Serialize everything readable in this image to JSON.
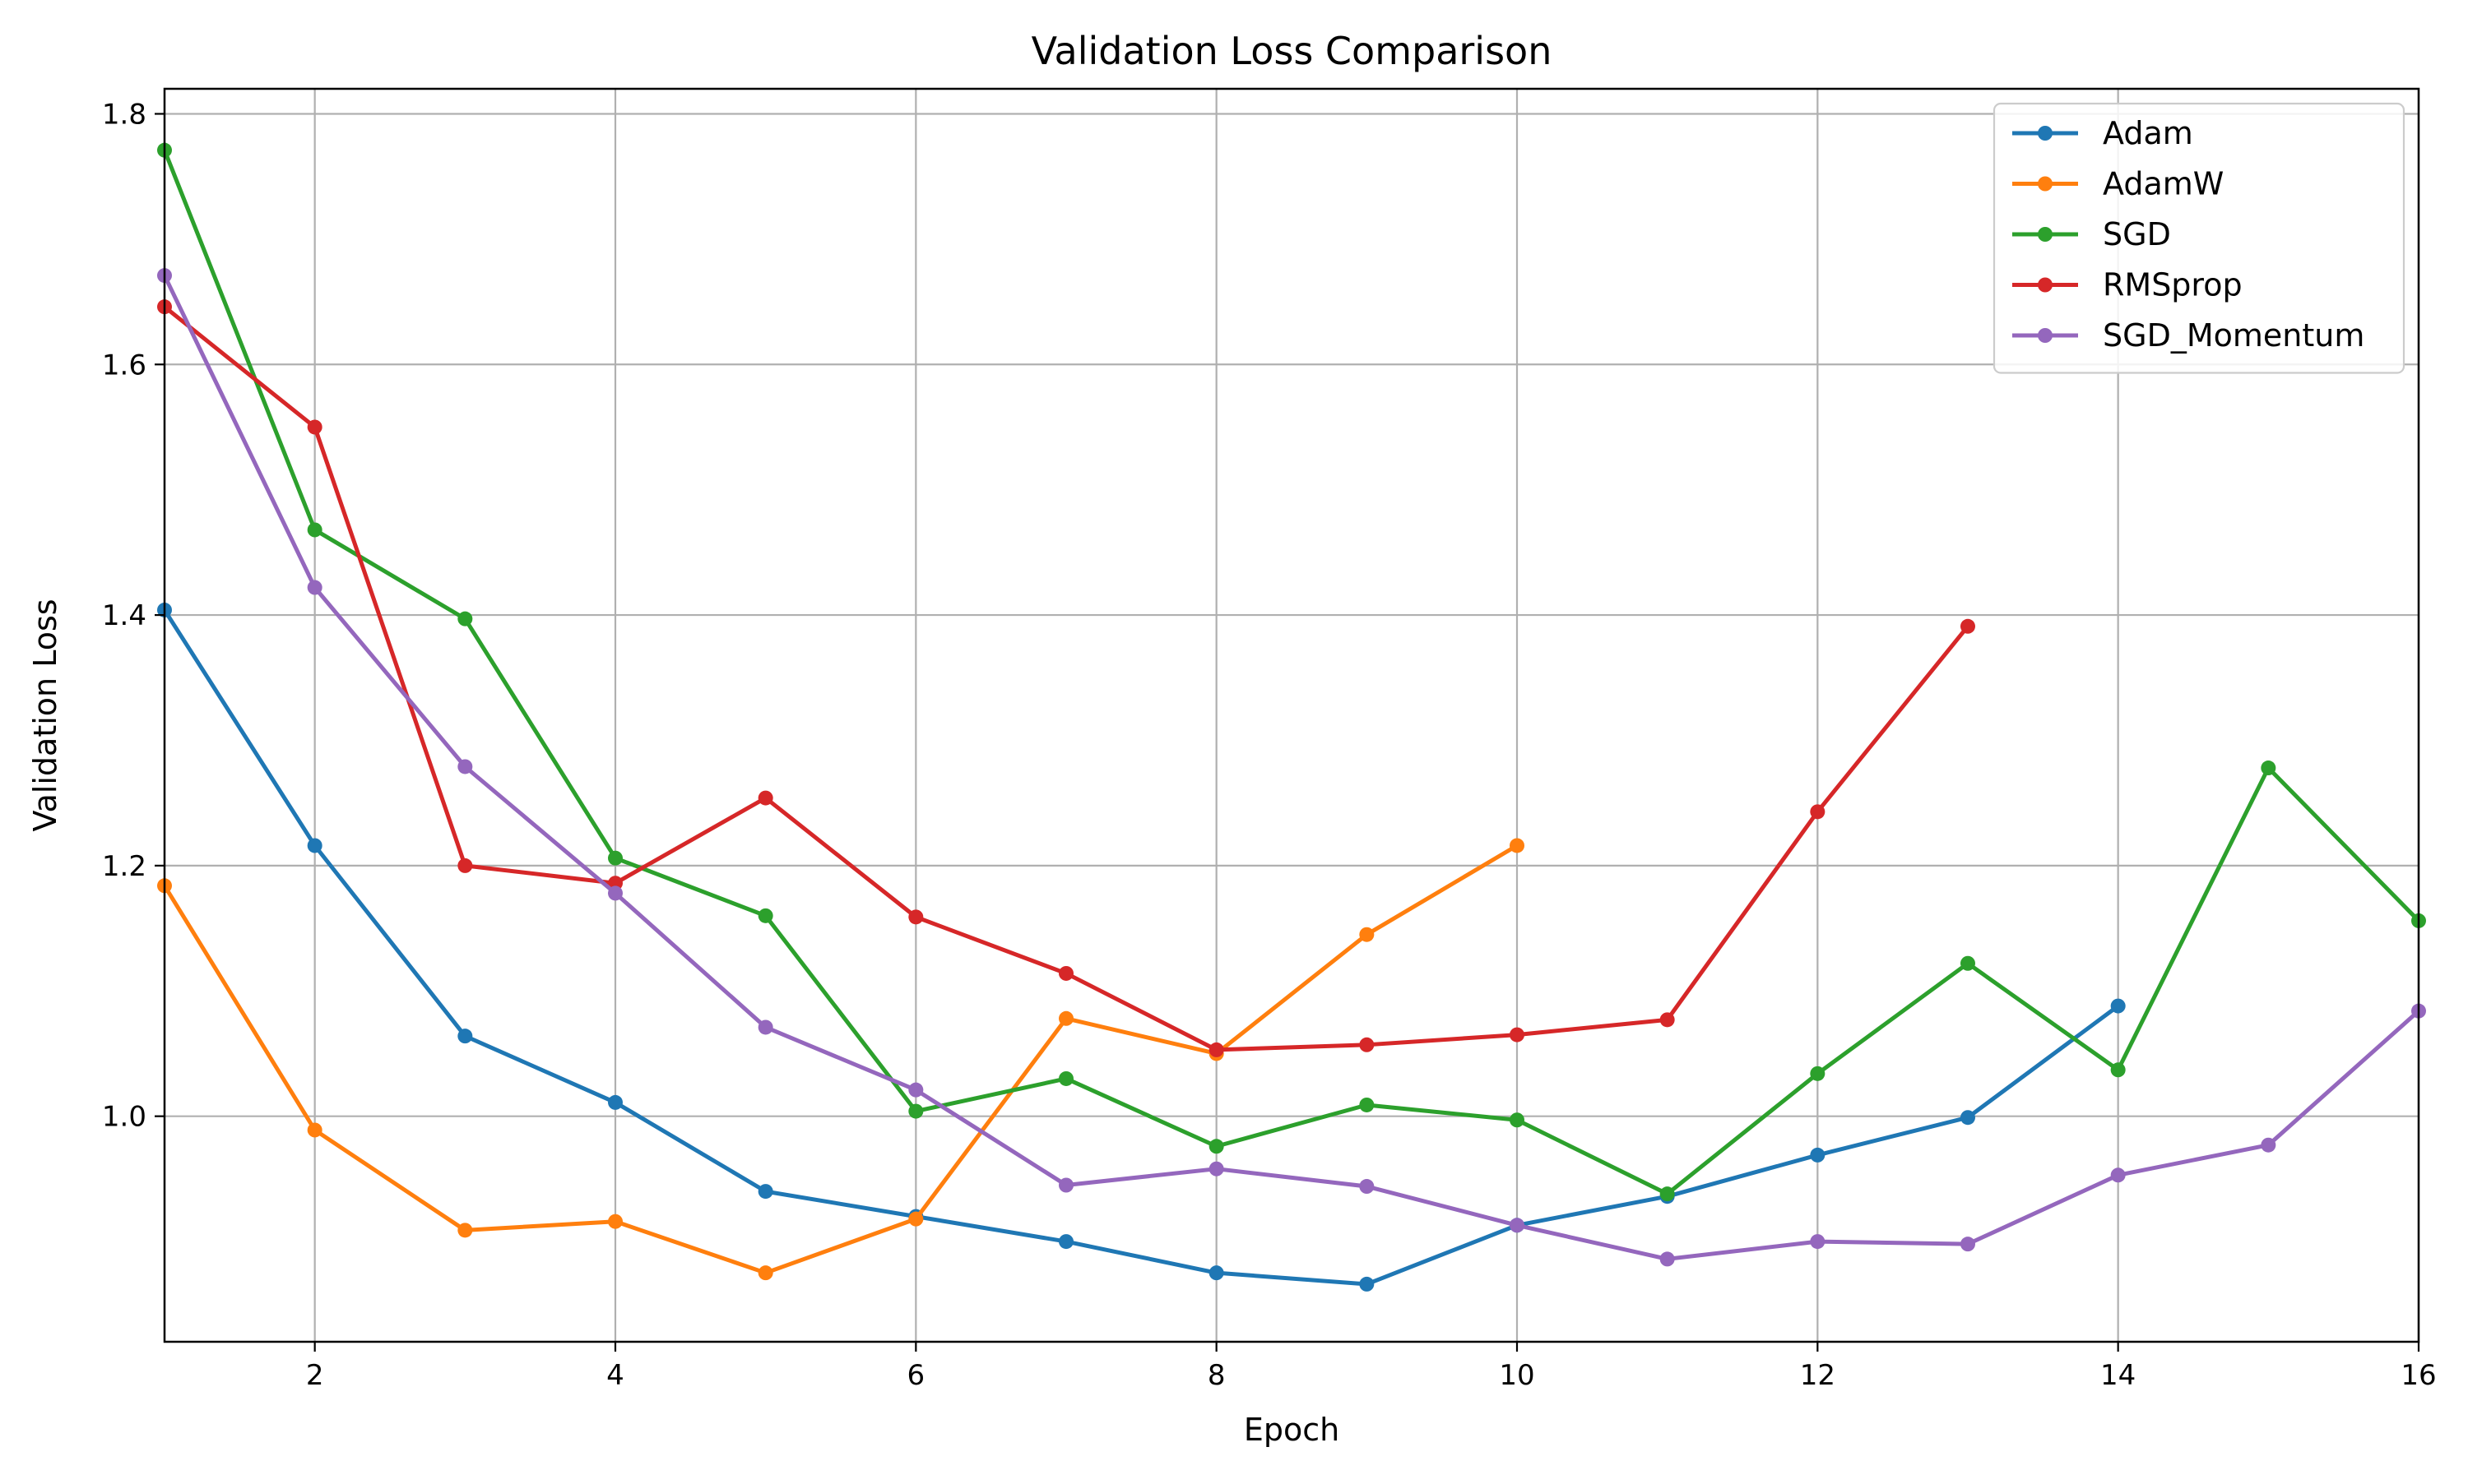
{
  "chart_data": {
    "type": "line",
    "title": "Validation Loss Comparison",
    "xlabel": "Epoch",
    "ylabel": "Validation Loss",
    "xlim": [
      1,
      16
    ],
    "ylim": [
      0.82,
      1.82
    ],
    "xticks": [
      2,
      4,
      6,
      8,
      10,
      12,
      14,
      16
    ],
    "yticks": [
      1.0,
      1.2,
      1.4,
      1.6,
      1.8
    ],
    "xtick_labels": [
      "2",
      "4",
      "6",
      "8",
      "10",
      "12",
      "14",
      "16"
    ],
    "ytick_labels": [
      "1.0",
      "1.2",
      "1.4",
      "1.6",
      "1.8"
    ],
    "grid": true,
    "legend_position": "top-right",
    "series": [
      {
        "name": "Adam",
        "color": "#1f77b4",
        "x": [
          1,
          2,
          3,
          4,
          5,
          6,
          7,
          8,
          9,
          10,
          11,
          12,
          13,
          14
        ],
        "values": [
          1.404,
          1.216,
          1.064,
          1.011,
          0.94,
          0.92,
          0.9,
          0.875,
          0.866,
          0.913,
          0.936,
          0.969,
          0.999,
          1.088
        ]
      },
      {
        "name": "AdamW",
        "color": "#ff7f0e",
        "x": [
          1,
          2,
          3,
          4,
          5,
          6,
          7,
          8,
          9,
          10
        ],
        "values": [
          1.184,
          0.989,
          0.909,
          0.916,
          0.875,
          0.918,
          1.078,
          1.05,
          1.145,
          1.216
        ]
      },
      {
        "name": "SGD",
        "color": "#2ca02c",
        "x": [
          1,
          2,
          3,
          4,
          5,
          6,
          7,
          8,
          9,
          10,
          11,
          12,
          13,
          14,
          15,
          16
        ],
        "values": [
          1.771,
          1.468,
          1.397,
          1.206,
          1.16,
          1.004,
          1.03,
          0.976,
          1.009,
          0.997,
          0.938,
          1.034,
          1.122,
          1.037,
          1.278,
          1.156
        ]
      },
      {
        "name": "RMSprop",
        "color": "#d62728",
        "x": [
          1,
          2,
          3,
          4,
          5,
          6,
          7,
          8,
          9,
          10,
          11,
          12,
          13
        ],
        "values": [
          1.646,
          1.55,
          1.2,
          1.186,
          1.254,
          1.159,
          1.114,
          1.053,
          1.057,
          1.065,
          1.077,
          1.243,
          1.391
        ]
      },
      {
        "name": "SGD_Momentum",
        "color": "#9467bd",
        "x": [
          1,
          2,
          3,
          4,
          5,
          6,
          7,
          8,
          9,
          10,
          11,
          12,
          13,
          14,
          15,
          16
        ],
        "values": [
          1.671,
          1.422,
          1.279,
          1.178,
          1.071,
          1.021,
          0.945,
          0.958,
          0.944,
          0.913,
          0.886,
          0.9,
          0.898,
          0.953,
          0.977,
          1.084
        ]
      }
    ]
  }
}
